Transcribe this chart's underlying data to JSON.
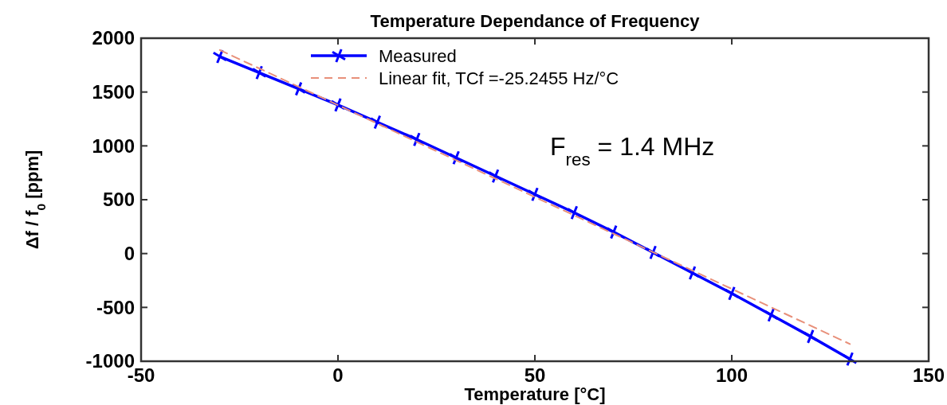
{
  "chart_data": {
    "type": "line",
    "title": "Temperature Dependance of Frequency",
    "xlabel": "Temperature [°C]",
    "ylabel": "Δf / f$_{0}$  [ppm]",
    "xlim": [
      -50,
      150
    ],
    "xticks": [
      -50,
      0,
      50,
      100,
      150
    ],
    "ylim": [
      -1000,
      2000
    ],
    "yticks": [
      -1000,
      -500,
      0,
      500,
      1000,
      1500,
      2000
    ],
    "grid": false,
    "legend": "top",
    "annotations": [
      "F$_{res}$ = 1.4 MHz"
    ],
    "series": [
      {
        "name": "Measured",
        "color": "#0000ff",
        "marker": "cross",
        "line_style": "solid",
        "x": [
          -30,
          -20,
          -10,
          0,
          10,
          20,
          30,
          40,
          50,
          60,
          70,
          80,
          90,
          100,
          110,
          120,
          130
        ],
        "values": [
          1830,
          1680,
          1530,
          1380,
          1220,
          1060,
          890,
          720,
          550,
          380,
          200,
          10,
          -180,
          -370,
          -570,
          -770,
          -980
        ]
      },
      {
        "name": "Linear fit, TCf =-25.2455 Hz/°C",
        "color": "#e8907a",
        "marker": "none",
        "line_style": "dashed",
        "x": [
          -30,
          130
        ],
        "values": [
          1890,
          -840
        ]
      }
    ]
  }
}
